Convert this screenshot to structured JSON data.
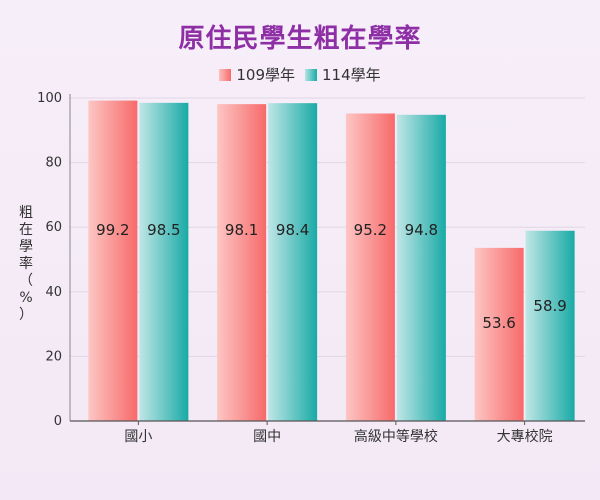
{
  "chart_data": {
    "type": "bar",
    "title": "原住民學生粗在學率",
    "xlabel": "",
    "ylabel": "粗在學率（%）",
    "categories": [
      "國小",
      "國中",
      "高級中等學校",
      "大專校院"
    ],
    "series": [
      {
        "name": "109學年",
        "values": [
          99.2,
          98.1,
          95.2,
          53.6
        ],
        "color": "#f76a6a"
      },
      {
        "name": "114學年",
        "values": [
          98.5,
          98.4,
          94.8,
          58.9
        ],
        "color": "#1aaba8"
      }
    ],
    "ylim": [
      0,
      100
    ],
    "yticks": [
      0,
      20,
      40,
      60,
      80,
      100
    ],
    "grid": true,
    "legend": "top-center"
  }
}
